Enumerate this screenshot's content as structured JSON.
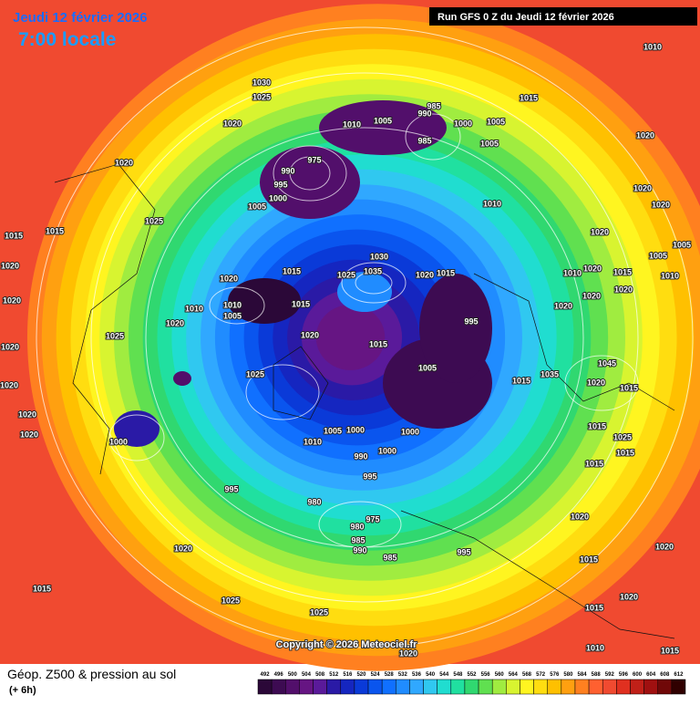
{
  "header": {
    "date": "Jeudi 12 février 2026",
    "time": "7:00 locale",
    "run": "Run GFS 0 Z du Jeudi 12 février 2026"
  },
  "copyright": "Copyright © 2026 Meteociel.fr",
  "footer": {
    "title": "Géop. Z500 & pression au sol",
    "step": "(+ 6h)"
  },
  "legend": {
    "levels": [
      492,
      496,
      500,
      504,
      508,
      512,
      516,
      520,
      524,
      528,
      532,
      536,
      540,
      544,
      548,
      552,
      556,
      560,
      564,
      568,
      572,
      576,
      580,
      584,
      588,
      592,
      596,
      600,
      604,
      608,
      612
    ],
    "colors": [
      "#2b0838",
      "#3d0b52",
      "#520f6b",
      "#661583",
      "#5a1a9a",
      "#2a1aa6",
      "#1526c0",
      "#0a3ad8",
      "#0a55ee",
      "#1070ff",
      "#208cff",
      "#30a8ff",
      "#30c8f0",
      "#20ddd0",
      "#20e0a0",
      "#30d870",
      "#60e050",
      "#a0ec40",
      "#d8f430",
      "#fff520",
      "#ffdd10",
      "#ffc000",
      "#ffa010",
      "#ff8020",
      "#ff6030",
      "#f04a30",
      "#e03020",
      "#c02018",
      "#a01010",
      "#700808",
      "#300000"
    ]
  },
  "pressure_labels": [
    1010,
    1030,
    1025,
    985,
    990,
    1015,
    1020,
    1010,
    1005,
    1000,
    1005,
    985,
    1005,
    975,
    1020,
    990,
    995,
    1000,
    1005,
    1020,
    1020,
    1010,
    1025,
    1015,
    1015,
    1020,
    1020,
    1005,
    1020,
    1030,
    1035,
    1025,
    1015,
    1020,
    1015,
    1020,
    1010,
    1020,
    1015,
    1005,
    1020,
    1010,
    1020,
    1010,
    1005,
    1010,
    1015,
    1020,
    1020,
    1020,
    995,
    1025,
    1020,
    1015,
    1020,
    1025,
    1005,
    1035,
    1015,
    1045,
    1020,
    1020,
    1015,
    1000,
    1000,
    1005,
    1010,
    990,
    1000,
    995,
    1015,
    1025,
    1020,
    1020,
    1015,
    1015,
    995,
    980,
    975,
    980,
    985,
    990,
    985,
    995,
    1020,
    1015,
    1020,
    1020,
    1015,
    1025,
    1015,
    1020,
    1025,
    1010,
    1015,
    1020,
    1000
  ]
}
